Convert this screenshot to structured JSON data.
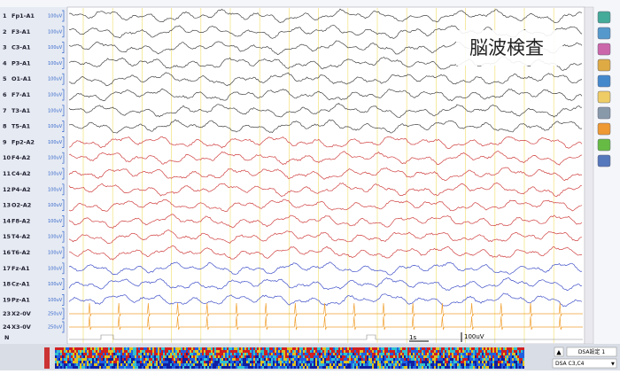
{
  "title": "脳波検査",
  "channels": [
    {
      "number": "1",
      "label": "Fp1-A1",
      "sensitivity": "100uV"
    },
    {
      "number": "2",
      "label": "F3-A1",
      "sensitivity": "100uV"
    },
    {
      "number": "3",
      "label": "C3-A1",
      "sensitivity": "100uV"
    },
    {
      "number": "4",
      "label": "P3-A1",
      "sensitivity": "100uV"
    },
    {
      "number": "5",
      "label": "O1-A1",
      "sensitivity": "100uV"
    },
    {
      "number": "6",
      "label": "F7-A1",
      "sensitivity": "100uV"
    },
    {
      "number": "7",
      "label": "T3-A1",
      "sensitivity": "100uV"
    },
    {
      "number": "8",
      "label": "T5-A1",
      "sensitivity": "100uV"
    },
    {
      "number": "9",
      "label": "Fp2-A2",
      "sensitivity": "100uV"
    },
    {
      "number": "10",
      "label": "F4-A2",
      "sensitivity": "100uV"
    },
    {
      "number": "11",
      "label": "C4-A2",
      "sensitivity": "100uV"
    },
    {
      "number": "12",
      "label": "P4-A2",
      "sensitivity": "100uV"
    },
    {
      "number": "13",
      "label": "O2-A2",
      "sensitivity": "100uV"
    },
    {
      "number": "14",
      "label": "F8-A2",
      "sensitivity": "100uV"
    },
    {
      "number": "15",
      "label": "T4-A2",
      "sensitivity": "100uV"
    },
    {
      "number": "16",
      "label": "T6-A2",
      "sensitivity": "100uV"
    },
    {
      "number": "17",
      "label": "Fz-A1",
      "sensitivity": "100uV"
    },
    {
      "number": "18",
      "label": "Cz-A1",
      "sensitivity": "100uV"
    },
    {
      "number": "19",
      "label": "Pz-A1",
      "sensitivity": "100uV"
    },
    {
      "number": "23",
      "label": "X2-0V",
      "sensitivity": "250uV"
    },
    {
      "number": "24",
      "label": "X3-0V",
      "sensitivity": "250uV"
    }
  ],
  "marker_row": "N",
  "scale_labels": {
    "time": "1s",
    "amplitude": "100uV"
  },
  "dsa": {
    "settings": "DSA設定 1",
    "channel": "DSA C3,C4"
  }
}
